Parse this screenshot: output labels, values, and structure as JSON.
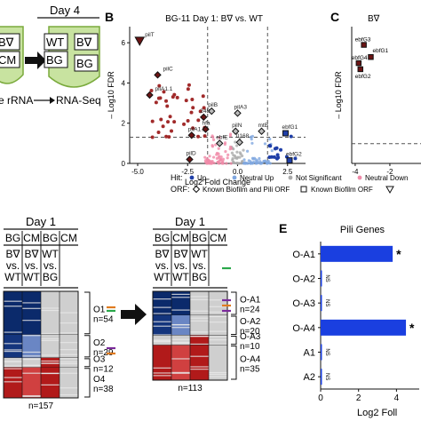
{
  "panel_a": {
    "day_label": "Day 4",
    "tube1_top": "B∇",
    "tube1_bottom": "CM",
    "tube2_top_left": "WT",
    "tube2_top_right": "B∇",
    "tube2_bottom_left": "BG",
    "tube2_bottom_right": "BG",
    "workflow_text": "e rRNA",
    "workflow_end": "RNA-Seq"
  },
  "panel_b": {
    "letter": "B",
    "title": "BG-11 Day 1: B∇ vs. WT"
  },
  "panel_c": {
    "letter": "C",
    "title": "B∇",
    "labels": [
      "ebfG3",
      "ebfG1",
      "ebfG4",
      "ebfG2"
    ]
  },
  "legend": {
    "hit_title": "Hit:",
    "hit_items": [
      "Up",
      "Neutral Up",
      "Not Significant",
      "Neutral Down"
    ],
    "orf_title": "ORF:",
    "orf_items": [
      "Known Biofilm and Pili ORF",
      "Known Biofilm ORF"
    ]
  },
  "panel_d": {
    "heat1": {
      "day": "Day 1",
      "cols": [
        "BG",
        "CM",
        "BG",
        "CM"
      ],
      "sub_row1": [
        "B∇",
        "B∇",
        "WT"
      ],
      "sub_row2": [
        "vs.",
        "vs.",
        "vs."
      ],
      "sub_row3": [
        "WT",
        "WT",
        "BG"
      ],
      "groups": [
        {
          "name": "O1",
          "n": "n=54"
        },
        {
          "name": "O2",
          "n": "n=29"
        },
        {
          "name": "O3",
          "n": "n=12"
        },
        {
          "name": "O4",
          "n": "n=38"
        }
      ],
      "total": "n=157"
    },
    "heat2": {
      "day": "Day 1",
      "cols": [
        "BG",
        "CM",
        "BG",
        "CM"
      ],
      "sub_row1": [
        "B∇",
        "B∇",
        "WT"
      ],
      "sub_row2": [
        "vs.",
        "vs.",
        "vs."
      ],
      "sub_row3": [
        "WT",
        "WT",
        "BG"
      ],
      "groups": [
        {
          "name": "O-A1",
          "n": "n=24"
        },
        {
          "name": "O-A2",
          "n": "n=20"
        },
        {
          "name": "O-A3",
          "n": "n=10"
        },
        {
          "name": "O-A4",
          "n": "n=35"
        }
      ],
      "total": "n=113"
    }
  },
  "chart_data": [
    {
      "type": "scatter",
      "title": "BG-11 Day 1: B∇ vs. WT",
      "xlabel": "Log2 Fold Change",
      "ylabel": "– Log10 FDR",
      "xlim": [
        -5.4,
        3.4
      ],
      "ylim": [
        0,
        6.8
      ],
      "xticks": [
        "-5.0",
        "-2.5",
        "0.0",
        "2.5"
      ],
      "yticks": [
        "0",
        "2",
        "4",
        "6"
      ],
      "thresholds": {
        "x": [
          -1.5,
          1.5
        ],
        "y": 1.3
      },
      "labeled_points": [
        {
          "label": "pilT",
          "x": -4.9,
          "y": 6.1,
          "marker": "triangle"
        },
        {
          "label": "pilC",
          "x": -4.0,
          "y": 4.4,
          "marker": "diamond"
        },
        {
          "label": "pilA1.1",
          "x": -4.4,
          "y": 3.4,
          "marker": "diamond"
        },
        {
          "label": "pilB",
          "x": -1.3,
          "y": 2.6,
          "marker": "diamond"
        },
        {
          "label": "pilA3",
          "x": 0.0,
          "y": 2.5,
          "marker": "diamond"
        },
        {
          "label": "pilN",
          "x": -0.1,
          "y": 1.6,
          "marker": "diamond"
        },
        {
          "label": "pilA1.2",
          "x": -2.3,
          "y": 1.4,
          "marker": "diamond"
        },
        {
          "label": "ebfE",
          "x": -0.9,
          "y": 1.0,
          "marker": "diamond"
        },
        {
          "label": "0168",
          "x": 0.1,
          "y": 1.05,
          "marker": "diamond"
        },
        {
          "label": "mtB",
          "x": 1.2,
          "y": 1.6,
          "marker": "diamond"
        },
        {
          "label": "ebfG1",
          "x": 2.4,
          "y": 1.5,
          "marker": "square"
        },
        {
          "label": "pilD",
          "x": -2.4,
          "y": 0.2,
          "marker": "diamond"
        },
        {
          "label": "ebfG2",
          "x": 2.6,
          "y": 0.15,
          "marker": "square"
        },
        {
          "label": "248",
          "x": -1.7,
          "y": 2.3,
          "marker": "diamond"
        },
        {
          "label": "hfa",
          "x": -1.6,
          "y": 1.7,
          "marker": "diamond"
        }
      ],
      "hit_groups": [
        "Up",
        "Neutral Up",
        "Not Significant",
        "Neutral Down"
      ]
    },
    {
      "type": "scatter",
      "title": "B∇",
      "ylabel": "– Log10 FDR",
      "xticks": [
        "-4",
        "-2"
      ],
      "yticks": [
        "0",
        "2",
        "4",
        "6"
      ],
      "ylim": [
        0,
        9
      ],
      "xlim": [
        -4.2,
        0
      ],
      "thresholds": {
        "y": 1.3
      },
      "labeled_points": [
        {
          "label": "ebfG3",
          "x": -3.5,
          "y": 7.8
        },
        {
          "label": "ebfG1",
          "x": -3.1,
          "y": 7.0
        },
        {
          "label": "ebfG4",
          "x": -3.8,
          "y": 6.6
        },
        {
          "label": "ebfG2",
          "x": -3.7,
          "y": 6.2
        }
      ]
    },
    {
      "type": "bar",
      "title": "Pili Genes",
      "orientation": "horizontal",
      "categories": [
        "O-A1",
        "O-A2",
        "O-A3",
        "O-A4",
        "A1",
        "A2"
      ],
      "values": [
        3.8,
        0,
        0,
        4.5,
        0,
        0
      ],
      "annotations": [
        "*",
        "",
        "",
        "*",
        "",
        ""
      ],
      "xlabel": "Log2 Foll",
      "xticks": [
        "0",
        "2",
        "4"
      ],
      "xlim": [
        0,
        5.2
      ]
    }
  ]
}
